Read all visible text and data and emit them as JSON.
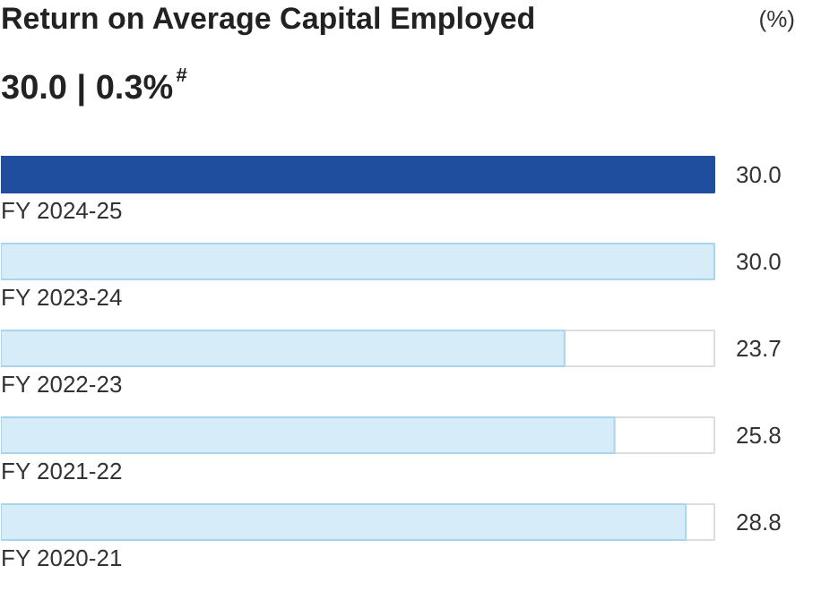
{
  "chart_data": {
    "type": "bar",
    "orientation": "horizontal",
    "title": "Return on Average Capital Employed",
    "subtitle": "30.0 | 0.3%$^{#}$",
    "annotations": [
      "(%)"
    ],
    "categories": [
      "FY 2024-25",
      "FY 2023-24",
      "FY 2022-23",
      "FY 2021-22",
      "FY 2020-21"
    ],
    "values": [
      30.0,
      30.0,
      23.7,
      25.8,
      28.8
    ],
    "colors": [
      "#1f4e9f",
      "#d6ecf9",
      "#d6ecf9",
      "#d6ecf9",
      "#d6ecf9"
    ],
    "value_labels": [
      "30.0",
      "30.0",
      "23.7",
      "25.8",
      "28.8"
    ],
    "grid": false
  }
}
